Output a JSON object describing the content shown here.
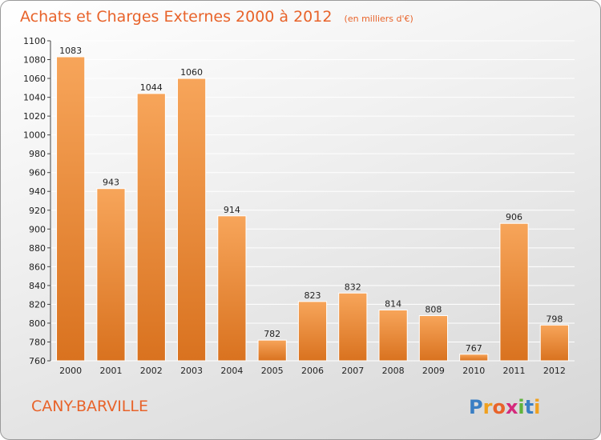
{
  "title": "Achats et Charges Externes 2000 à 2012",
  "subtitle": "(en milliers d'€)",
  "city": "CANY-BARVILLE",
  "logo": {
    "text": "Proxiti",
    "letters": [
      {
        "ch": "P",
        "color": "#3a7fc4"
      },
      {
        "ch": "r",
        "color": "#f0a01e"
      },
      {
        "ch": "o",
        "color": "#e8632a"
      },
      {
        "ch": "x",
        "color": "#d42a7c"
      },
      {
        "ch": "i",
        "color": "#5fb33c"
      },
      {
        "ch": "t",
        "color": "#3a7fc4"
      },
      {
        "ch": "i",
        "color": "#f0a01e"
      }
    ]
  },
  "colors": {
    "bar_light": "#f7a55a",
    "bar_dark": "#d9721f",
    "title": "#e8632a",
    "grid": "#ffffff"
  },
  "chart_data": {
    "type": "bar",
    "categories": [
      "2000",
      "2001",
      "2002",
      "2003",
      "2004",
      "2005",
      "2006",
      "2007",
      "2008",
      "2009",
      "2010",
      "2011",
      "2012"
    ],
    "values": [
      1083,
      943,
      1044,
      1060,
      914,
      782,
      823,
      832,
      814,
      808,
      767,
      906,
      798
    ],
    "ylim": [
      760,
      1100
    ],
    "yticks": [
      760,
      780,
      800,
      820,
      840,
      860,
      880,
      900,
      920,
      940,
      960,
      980,
      1000,
      1020,
      1040,
      1060,
      1080,
      1100
    ],
    "grid": true
  }
}
